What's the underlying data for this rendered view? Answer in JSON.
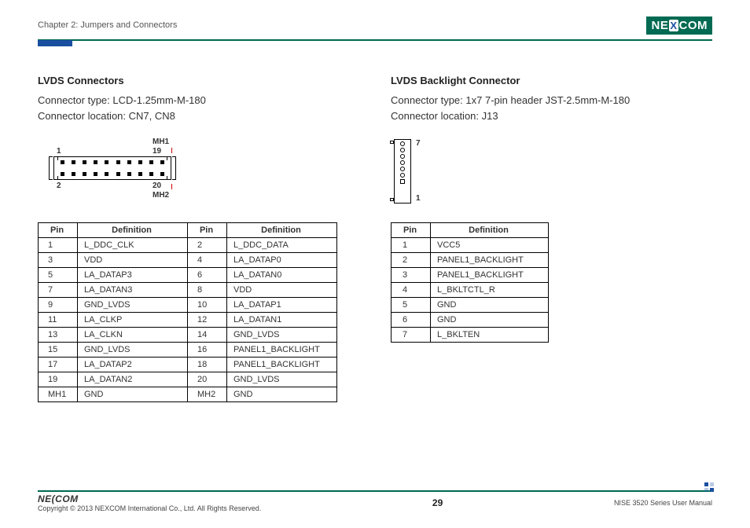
{
  "header": {
    "chapter": "Chapter 2: Jumpers and Connectors",
    "logo_pre": "NE",
    "logo_x": "X",
    "logo_post": "COM"
  },
  "left": {
    "title": "LVDS Connectors",
    "line1": "Connector type: LCD-1.25mm-M-180",
    "line2": "Connector location: CN7, CN8",
    "diagram": {
      "mh1": "MH1",
      "mh2": "MH2",
      "p1": "1",
      "p19": "19",
      "p2": "2",
      "p20": "20",
      "pins_per_row": 10
    },
    "table": {
      "columns": [
        "Pin",
        "Definition",
        "Pin",
        "Definition"
      ],
      "rows": [
        [
          "1",
          "L_DDC_CLK",
          "2",
          "L_DDC_DATA"
        ],
        [
          "3",
          "VDD",
          "4",
          "LA_DATAP0"
        ],
        [
          "5",
          "LA_DATAP3",
          "6",
          "LA_DATAN0"
        ],
        [
          "7",
          "LA_DATAN3",
          "8",
          "VDD"
        ],
        [
          "9",
          "GND_LVDS",
          "10",
          "LA_DATAP1"
        ],
        [
          "11",
          "LA_CLKP",
          "12",
          "LA_DATAN1"
        ],
        [
          "13",
          "LA_CLKN",
          "14",
          "GND_LVDS"
        ],
        [
          "15",
          "GND_LVDS",
          "16",
          "PANEL1_BACKLIGHT"
        ],
        [
          "17",
          "LA_DATAP2",
          "18",
          "PANEL1_BACKLIGHT"
        ],
        [
          "19",
          "LA_DATAN2",
          "20",
          "GND_LVDS"
        ],
        [
          "MH1",
          "GND",
          "MH2",
          "GND"
        ]
      ]
    }
  },
  "right": {
    "title": "LVDS Backlight Connector",
    "line1": "Connector type: 1x7 7-pin header JST-2.5mm-M-180",
    "line2": "Connector location: J13",
    "diagram": {
      "p7": "7",
      "p1": "1",
      "holes": 7
    },
    "table": {
      "columns": [
        "Pin",
        "Definition"
      ],
      "rows": [
        [
          "1",
          "VCC5"
        ],
        [
          "2",
          "PANEL1_BACKLIGHT"
        ],
        [
          "3",
          "PANEL1_BACKLIGHT"
        ],
        [
          "4",
          "L_BKLTCTL_R"
        ],
        [
          "5",
          "GND"
        ],
        [
          "6",
          "GND"
        ],
        [
          "7",
          "L_BKLTEN"
        ]
      ]
    }
  },
  "footer": {
    "logo": "NE(COM",
    "copyright": "Copyright © 2013 NEXCOM International Co., Ltd. All Rights Reserved.",
    "page": "29",
    "manual": "NISE 3520 Series User Manual"
  },
  "colors": {
    "teal": "#006a52",
    "blue": "#1a4fa0",
    "red": "#c00"
  }
}
